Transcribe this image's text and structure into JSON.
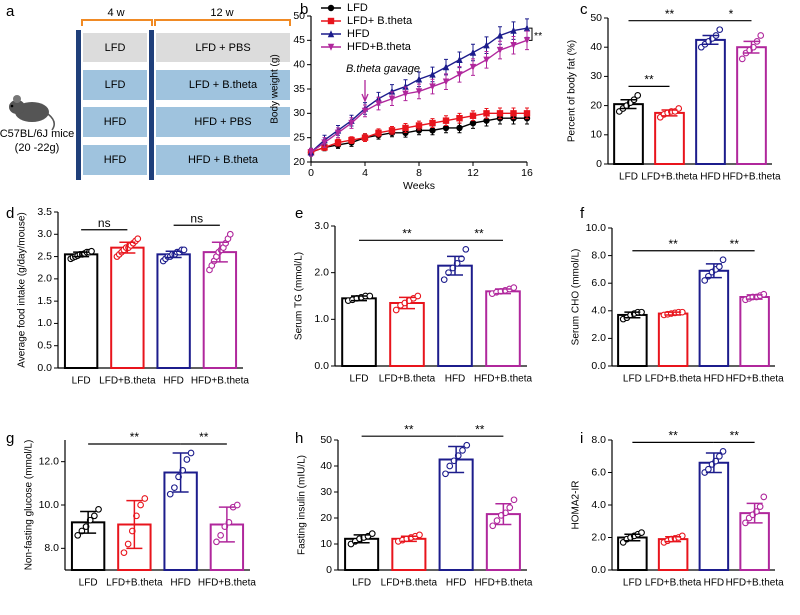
{
  "diagram": {
    "panel": "a",
    "strain": "C57BL/6J mice",
    "weight": "(20 -22g)",
    "phases": [
      "4 w",
      "12 w"
    ],
    "rows": [
      [
        "LFD",
        "LFD + PBS"
      ],
      [
        "LFD",
        "LFD + B.theta"
      ],
      [
        "HFD",
        "HFD + PBS"
      ],
      [
        "HFD",
        "HFD + B.theta"
      ]
    ]
  },
  "chart_data": [
    {
      "panel": "b",
      "type": "line",
      "xlabel": "Weeks",
      "ylabel": "Body weight (g)",
      "x": [
        0,
        1,
        2,
        3,
        4,
        5,
        6,
        7,
        8,
        9,
        10,
        11,
        12,
        13,
        14,
        15,
        16
      ],
      "xlim": [
        0,
        16
      ],
      "xticks": [
        0,
        4,
        8,
        12,
        16
      ],
      "ylim": [
        20,
        50
      ],
      "yticks": [
        20,
        25,
        30,
        35,
        40,
        45,
        50
      ],
      "legend": "upper left",
      "annotation": {
        "text": "B.theta gavage",
        "x": 4
      },
      "end_note": "**",
      "series": [
        {
          "name": "LFD",
          "color": "#000000",
          "marker": "circle",
          "values": [
            22,
            23,
            23.5,
            24,
            25,
            25.5,
            26,
            26,
            26.5,
            26.5,
            27,
            27,
            28,
            28.5,
            29,
            29,
            29
          ],
          "errors": [
            0.6,
            0.7,
            0.7,
            0.8,
            0.8,
            0.8,
            0.8,
            0.9,
            0.9,
            0.9,
            1,
            1,
            1.1,
            1.1,
            1.2,
            1.2,
            1.2
          ]
        },
        {
          "name": "LFD+ B.theta",
          "color": "#e8141c",
          "marker": "square",
          "values": [
            22,
            23,
            24,
            24.5,
            25,
            26,
            26.5,
            27,
            27.5,
            28,
            28.5,
            29,
            29.5,
            30,
            30,
            30,
            30
          ],
          "errors": [
            0.6,
            0.6,
            0.7,
            0.7,
            0.8,
            0.8,
            0.8,
            0.9,
            0.9,
            0.9,
            1,
            1,
            1,
            1,
            1.1,
            1.1,
            1.1
          ]
        },
        {
          "name": "HFD",
          "color": "#1c1c8c",
          "marker": "triangle",
          "values": [
            22,
            24.5,
            26.5,
            28.5,
            31,
            33,
            34.5,
            35.5,
            37,
            38,
            39.5,
            41,
            42.5,
            44,
            46,
            47,
            47.5
          ],
          "errors": [
            0.8,
            1,
            1,
            1.1,
            1.2,
            1.3,
            1.4,
            1.4,
            1.5,
            1.5,
            1.6,
            1.6,
            1.7,
            1.7,
            1.8,
            1.8,
            1.9
          ]
        },
        {
          "name": "HFD+B.theta",
          "color": "#b0279c",
          "marker": "down-triangle",
          "values": [
            22,
            24,
            26,
            28,
            30.5,
            32,
            33,
            34,
            34.5,
            35.5,
            36.5,
            38,
            39.5,
            41,
            43,
            44,
            45
          ],
          "errors": [
            0.8,
            1,
            1,
            1.1,
            1.2,
            1.3,
            1.4,
            1.4,
            1.5,
            1.5,
            1.6,
            1.6,
            1.7,
            1.7,
            1.8,
            1.8,
            1.9
          ]
        }
      ]
    },
    {
      "panel": "c",
      "type": "bar",
      "ylabel": "Percent of body fat (%)",
      "categories": [
        "LFD",
        "LFD+B.theta",
        "HFD",
        "HFD+B.theta"
      ],
      "colors": [
        "#000000",
        "#e8141c",
        "#1c1c8c",
        "#b0279c"
      ],
      "ylim": [
        0,
        50
      ],
      "yticks": [
        0,
        10,
        20,
        30,
        40,
        50
      ],
      "values": [
        20.5,
        17.5,
        42.5,
        40
      ],
      "errors": [
        1.5,
        1,
        1.5,
        2
      ],
      "points": [
        [
          18,
          19,
          20,
          21,
          22,
          23.5
        ],
        [
          16,
          17,
          17.5,
          18,
          18,
          19
        ],
        [
          40,
          41,
          42,
          43,
          44,
          46
        ],
        [
          36,
          38,
          39,
          40,
          42,
          44
        ]
      ],
      "significance": [
        {
          "from": 0,
          "to": 1,
          "label": "**"
        },
        {
          "from": 0,
          "to": 2,
          "label": "**"
        },
        {
          "from": 2,
          "to": 3,
          "label": "*"
        }
      ]
    },
    {
      "panel": "d",
      "type": "bar",
      "ylabel": "Average food intake (g/day/mouse)",
      "categories": [
        "LFD",
        "LFD+B.theta",
        "HFD",
        "HFD+B.theta"
      ],
      "colors": [
        "#000000",
        "#e8141c",
        "#1c1c8c",
        "#b0279c"
      ],
      "ylim": [
        0,
        3.5
      ],
      "yticks": [
        {
          "value": 0,
          "label": "0.0"
        },
        {
          "value": 0.5,
          "label": "0.5"
        },
        {
          "value": 1,
          "label": "1.0"
        },
        {
          "value": 1.5,
          "label": "1.5"
        },
        {
          "value": 2,
          "label": "2.0"
        },
        {
          "value": 2.5,
          "label": "2.5"
        },
        {
          "value": 3,
          "label": "3.0"
        },
        {
          "value": 3.5,
          "label": "3.5"
        }
      ],
      "values": [
        2.55,
        2.7,
        2.55,
        2.6
      ],
      "errors": [
        0.05,
        0.12,
        0.07,
        0.22
      ],
      "points": [
        [
          2.45,
          2.48,
          2.5,
          2.52,
          2.55,
          2.55,
          2.57,
          2.6,
          2.6,
          2.62
        ],
        [
          2.5,
          2.55,
          2.6,
          2.65,
          2.7,
          2.7,
          2.75,
          2.8,
          2.85,
          2.9
        ],
        [
          2.4,
          2.45,
          2.5,
          2.5,
          2.55,
          2.55,
          2.6,
          2.6,
          2.65,
          2.65
        ],
        [
          2.2,
          2.3,
          2.4,
          2.5,
          2.6,
          2.65,
          2.7,
          2.8,
          2.9,
          3.0
        ]
      ],
      "significance": [
        {
          "from": 0,
          "to": 1,
          "label": "ns"
        },
        {
          "from": 2,
          "to": 3,
          "label": "ns"
        }
      ]
    },
    {
      "panel": "e",
      "type": "bar",
      "ylabel": "Serum TG (mmol/L)",
      "categories": [
        "LFD",
        "LFD+B.theta",
        "HFD",
        "HFD+B.theta"
      ],
      "colors": [
        "#000000",
        "#e8141c",
        "#1c1c8c",
        "#b0279c"
      ],
      "ylim": [
        0,
        3
      ],
      "yticks": [
        {
          "value": 0,
          "label": "0.0"
        },
        {
          "value": 1,
          "label": "1.0"
        },
        {
          "value": 2,
          "label": "2.0"
        },
        {
          "value": 3,
          "label": "3.0"
        }
      ],
      "values": [
        1.45,
        1.35,
        2.15,
        1.6
      ],
      "errors": [
        0.05,
        0.12,
        0.2,
        0.05
      ],
      "points": [
        [
          1.4,
          1.42,
          1.45,
          1.47,
          1.5,
          1.5
        ],
        [
          1.2,
          1.3,
          1.35,
          1.4,
          1.45,
          1.5
        ],
        [
          1.85,
          2.0,
          2.1,
          2.2,
          2.3,
          2.5
        ],
        [
          1.55,
          1.58,
          1.6,
          1.62,
          1.65,
          1.68
        ]
      ],
      "significance": [
        {
          "from": 0,
          "to": 2,
          "label": "**"
        },
        {
          "from": 2,
          "to": 3,
          "label": "**"
        }
      ]
    },
    {
      "panel": "f",
      "type": "bar",
      "ylabel": "Serum CHO (mmol/L)",
      "categories": [
        "LFD",
        "LFD+B.theta",
        "HFD",
        "HFD+B.theta"
      ],
      "colors": [
        "#000000",
        "#e8141c",
        "#1c1c8c",
        "#b0279c"
      ],
      "ylim": [
        0,
        10
      ],
      "yticks": [
        {
          "value": 0,
          "label": "0.0"
        },
        {
          "value": 2,
          "label": "2.0"
        },
        {
          "value": 4,
          "label": "4.0"
        },
        {
          "value": 6,
          "label": "6.0"
        },
        {
          "value": 8,
          "label": "8.0"
        },
        {
          "value": 10,
          "label": "10.0"
        }
      ],
      "values": [
        3.7,
        3.8,
        6.9,
        5.0
      ],
      "errors": [
        0.2,
        0.1,
        0.5,
        0.15
      ],
      "points": [
        [
          3.4,
          3.5,
          3.7,
          3.8,
          3.9,
          3.9
        ],
        [
          3.7,
          3.75,
          3.8,
          3.85,
          3.9,
          3.9
        ],
        [
          6.2,
          6.5,
          6.8,
          7.0,
          7.2,
          7.7
        ],
        [
          4.8,
          4.9,
          5.0,
          5.0,
          5.1,
          5.2
        ]
      ],
      "significance": [
        {
          "from": 0,
          "to": 2,
          "label": "**"
        },
        {
          "from": 2,
          "to": 3,
          "label": "**"
        }
      ]
    },
    {
      "panel": "g",
      "type": "bar",
      "ylabel": "Non-fasting glucose (mmol/L)",
      "categories": [
        "LFD",
        "LFD+B.theta",
        "HFD",
        "HFD+B.theta"
      ],
      "colors": [
        "#000000",
        "#e8141c",
        "#1c1c8c",
        "#b0279c"
      ],
      "ylim": [
        7,
        13
      ],
      "yticks": [
        {
          "value": 8,
          "label": "8.0"
        },
        {
          "value": 10,
          "label": "10.0"
        },
        {
          "value": 12,
          "label": "12.0"
        }
      ],
      "values": [
        9.2,
        9.1,
        11.5,
        9.1
      ],
      "errors": [
        0.5,
        1.1,
        0.9,
        0.8
      ],
      "points": [
        [
          8.6,
          8.8,
          9.0,
          9.3,
          9.5,
          9.8
        ],
        [
          7.8,
          8.2,
          8.8,
          9.5,
          10.0,
          10.3
        ],
        [
          10.5,
          10.8,
          11.3,
          11.6,
          12.1,
          12.4
        ],
        [
          8.3,
          8.6,
          9.0,
          9.2,
          9.9,
          10.0
        ]
      ],
      "significance": [
        {
          "from": 0,
          "to": 2,
          "label": "**"
        },
        {
          "from": 2,
          "to": 3,
          "label": "**"
        }
      ]
    },
    {
      "panel": "h",
      "type": "bar",
      "ylabel": "Fasting insulin (mIU/L)",
      "categories": [
        "LFD",
        "LFD+B.theta",
        "HFD",
        "HFD+B.theta"
      ],
      "colors": [
        "#000000",
        "#e8141c",
        "#1c1c8c",
        "#b0279c"
      ],
      "ylim": [
        0,
        50
      ],
      "yticks": [
        0,
        10,
        20,
        30,
        40,
        50
      ],
      "values": [
        12,
        12,
        42.5,
        21.5
      ],
      "errors": [
        1.5,
        1,
        5,
        4
      ],
      "points": [
        [
          10,
          11,
          12,
          12.5,
          13,
          14
        ],
        [
          11,
          11.5,
          12,
          12.5,
          13,
          13.5
        ],
        [
          37,
          40,
          42,
          44,
          46,
          48
        ],
        [
          17,
          19,
          21,
          22,
          24,
          27
        ]
      ],
      "significance": [
        {
          "from": 0,
          "to": 2,
          "label": "**"
        },
        {
          "from": 2,
          "to": 3,
          "label": "**"
        }
      ]
    },
    {
      "panel": "i",
      "type": "bar",
      "ylabel": "HOMA2-IR",
      "categories": [
        "LFD",
        "LFD+B.theta",
        "HFD",
        "HFD+B.theta"
      ],
      "colors": [
        "#000000",
        "#e8141c",
        "#1c1c8c",
        "#b0279c"
      ],
      "ylim": [
        0,
        8
      ],
      "yticks": [
        {
          "value": 0,
          "label": "0.0"
        },
        {
          "value": 2,
          "label": "2.0"
        },
        {
          "value": 4,
          "label": "4.0"
        },
        {
          "value": 6,
          "label": "6.0"
        },
        {
          "value": 8,
          "label": "8.0"
        }
      ],
      "values": [
        2.0,
        1.9,
        6.6,
        3.5
      ],
      "errors": [
        0.2,
        0.15,
        0.6,
        0.6
      ],
      "points": [
        [
          1.7,
          1.9,
          2.0,
          2.1,
          2.2,
          2.3
        ],
        [
          1.7,
          1.8,
          1.9,
          1.95,
          2.0,
          2.1
        ],
        [
          6.0,
          6.2,
          6.5,
          6.7,
          7.0,
          7.3
        ],
        [
          2.9,
          3.2,
          3.4,
          3.6,
          3.9,
          4.5
        ]
      ],
      "significance": [
        {
          "from": 0,
          "to": 2,
          "label": "**"
        },
        {
          "from": 2,
          "to": 3,
          "label": "**"
        }
      ]
    }
  ]
}
